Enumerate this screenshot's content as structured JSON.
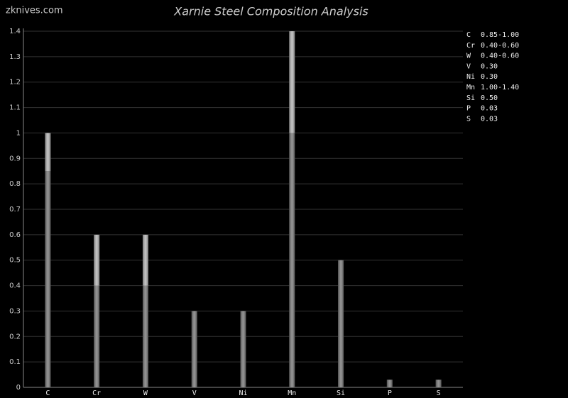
{
  "chart_data": {
    "type": "range-bar",
    "title": "Xarnie Steel Composition Analysis",
    "watermark": "zknives.com",
    "categories": [
      "C",
      "Cr",
      "W",
      "V",
      "Ni",
      "Mn",
      "Si",
      "P",
      "S"
    ],
    "ranges": [
      [
        0.85,
        1.0
      ],
      [
        0.4,
        0.6
      ],
      [
        0.4,
        0.6
      ],
      [
        0.3
      ],
      [
        0.3
      ],
      [
        1.0,
        1.4
      ],
      [
        0.5
      ],
      [
        0.03
      ],
      [
        0.03
      ]
    ],
    "value_labels": [
      "0.85-1.00",
      "0.40-0.60",
      "0.40-0.60",
      "0.30",
      "0.30",
      "1.00-1.40",
      "0.50",
      "0.03",
      "0.03"
    ],
    "ylim": [
      0,
      1.4
    ],
    "yticks": [
      0,
      0.1,
      0.2,
      0.3,
      0.4,
      0.5,
      0.6,
      0.7,
      0.8,
      0.9,
      1,
      1.1,
      1.2,
      1.3,
      1.4
    ],
    "grid": true,
    "colors": {
      "low": "#7a7a7a",
      "high": "#b5b5b5"
    }
  }
}
